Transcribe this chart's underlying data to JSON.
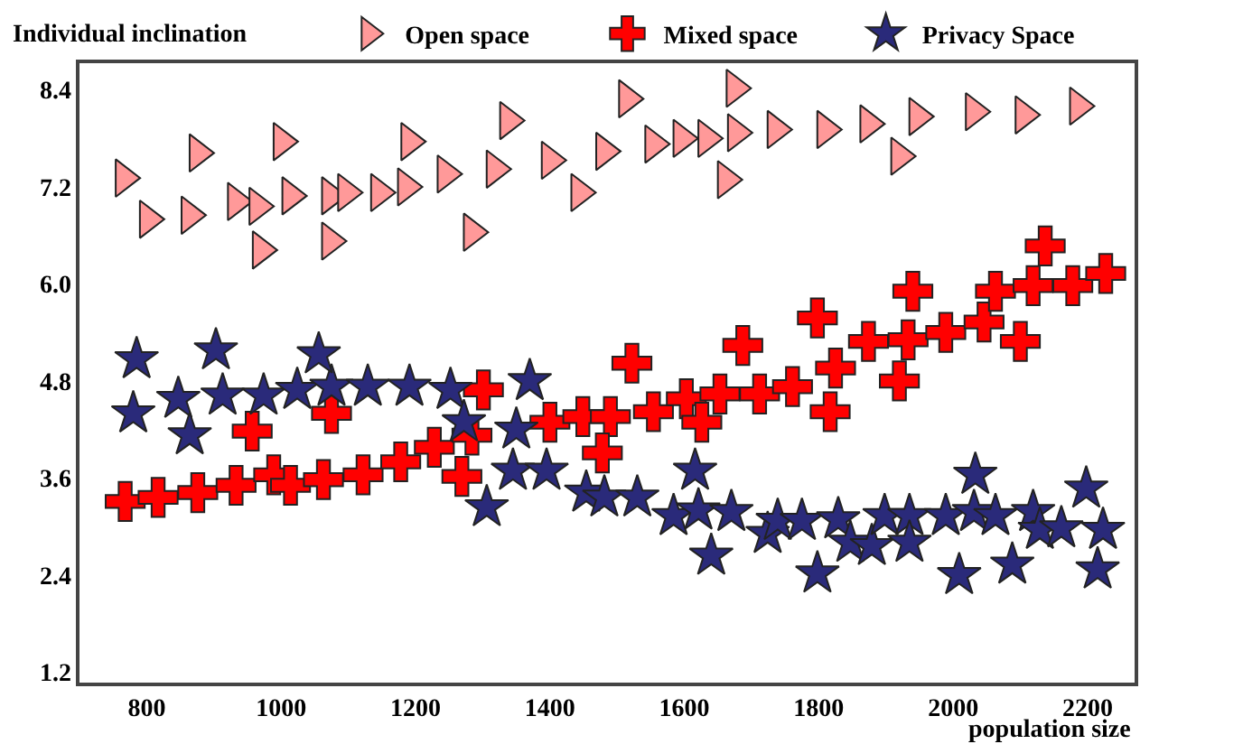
{
  "chart_data": {
    "type": "scatter",
    "ylabel": "Individual inclination",
    "xlabel": "population size",
    "xlim": [
      700,
      2270
    ],
    "xticks": [
      800,
      1000,
      1200,
      1400,
      1600,
      1800,
      2000,
      2200
    ],
    "ylim": [
      1.07,
      8.73
    ],
    "yticks": [
      1.2,
      2.4,
      3.6,
      4.8,
      {
        "value": 6,
        "label": "6.0"
      },
      7.2,
      8.4
    ],
    "grid": false,
    "legend": "top",
    "series": [
      {
        "name": "Open space",
        "color": "#ff9999",
        "marker": "triangle",
        "x": [
          802,
          864,
          933,
          965,
          1014,
          1073,
          1097,
          1146,
          1186,
          1245,
          1318,
          1400,
          1481,
          1554,
          1596,
          1633,
          1677,
          1736,
          1810,
          1874,
          1947,
          2031,
          2105,
          2186,
          766,
          876,
          1001,
          970,
          1073,
          1191,
          1338,
          1284,
          1444,
          1515,
          1675,
          1662,
          1920
        ],
        "values": [
          6.8,
          6.85,
          7.02,
          6.96,
          7.09,
          7.09,
          7.13,
          7.13,
          7.2,
          7.36,
          7.42,
          7.53,
          7.64,
          7.73,
          7.8,
          7.8,
          7.87,
          7.91,
          7.91,
          7.98,
          8.07,
          8.13,
          8.09,
          8.2,
          7.31,
          7.62,
          7.76,
          6.42,
          6.53,
          7.76,
          8.02,
          6.64,
          7.13,
          8.29,
          8.42,
          7.29,
          7.58
        ]
      },
      {
        "name": "Mixed space",
        "color": "#ff0000",
        "marker": "cross",
        "x": [
          768,
          817,
          876,
          933,
          989,
          1014,
          1063,
          1122,
          1178,
          1228,
          1284,
          1400,
          1449,
          1490,
          1554,
          1603,
          1653,
          1712,
          1761,
          1825,
          1874,
          1933,
          1989,
          2046,
          2063,
          2119,
          2178,
          2227,
          957,
          1075,
          1301,
          1269,
          1478,
          1626,
          1817,
          1920,
          1522,
          1687,
          1798,
          1940,
          2137,
          2100
        ],
        "values": [
          3.31,
          3.36,
          3.42,
          3.51,
          3.64,
          3.51,
          3.58,
          3.64,
          3.8,
          3.98,
          4.13,
          4.29,
          4.36,
          4.36,
          4.42,
          4.58,
          4.64,
          4.64,
          4.73,
          4.96,
          5.29,
          5.31,
          5.4,
          5.53,
          5.91,
          5.98,
          5.98,
          6.13,
          4.18,
          4.4,
          4.69,
          3.62,
          3.91,
          4.29,
          4.42,
          4.8,
          5.02,
          5.24,
          5.58,
          5.91,
          6.47,
          5.29
        ]
      },
      {
        "name": "Privacy Space",
        "color": "#2a2a7a",
        "marker": "star",
        "x": [
          780,
          847,
          913,
          974,
          1024,
          1075,
          1129,
          1191,
          1252,
          1272,
          1350,
          1345,
          1395,
          1454,
          1481,
          1530,
          1584,
          1621,
          1670,
          1724,
          1739,
          1775,
          1829,
          1847,
          1879,
          1898,
          1935,
          1935,
          1989,
          2031,
          2063,
          2119,
          2129,
          2161,
          2223,
          785,
          903,
          1056,
          1370,
          864,
          1306,
          1616,
          1640,
          1798,
          2009,
          2033,
          2088,
          2198,
          2215
        ],
        "values": [
          4.4,
          4.58,
          4.62,
          4.62,
          4.69,
          4.73,
          4.73,
          4.73,
          4.69,
          4.29,
          4.2,
          3.69,
          3.69,
          3.42,
          3.36,
          3.36,
          3.13,
          3.2,
          3.18,
          2.91,
          3.07,
          3.07,
          3.09,
          2.8,
          2.76,
          3.13,
          3.13,
          2.8,
          3.13,
          3.18,
          3.13,
          3.18,
          2.96,
          2.98,
          2.96,
          5.07,
          5.18,
          5.13,
          4.8,
          4.13,
          3.24,
          3.69,
          2.64,
          2.42,
          2.4,
          3.64,
          2.53,
          3.47,
          2.47
        ]
      }
    ]
  }
}
